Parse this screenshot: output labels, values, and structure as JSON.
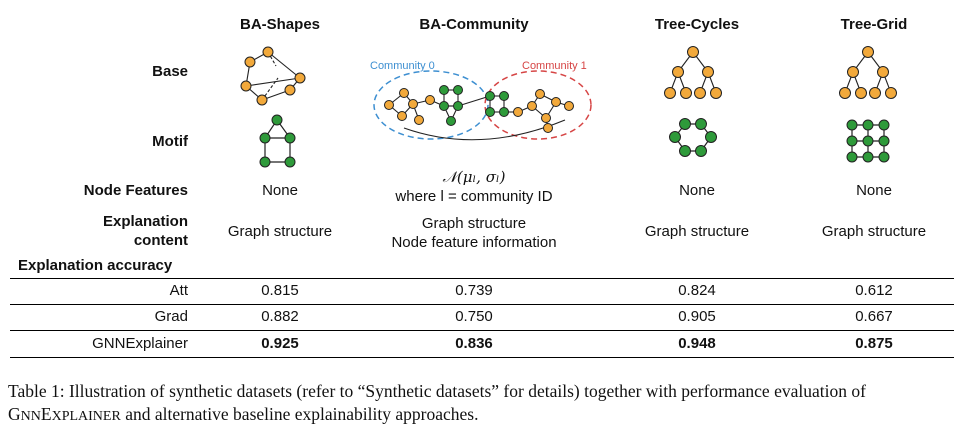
{
  "columns": [
    "BA-Shapes",
    "BA-Community",
    "Tree-Cycles",
    "Tree-Grid"
  ],
  "row_labels": {
    "base": "Base",
    "motif": "Motif",
    "node_features": "Node Features",
    "explanation_content_line1": "Explanation",
    "explanation_content_line2": "content",
    "explanation_accuracy": "Explanation accuracy"
  },
  "community_labels": [
    "Community 0",
    "Community 1"
  ],
  "node_features": {
    "ba_shapes": "None",
    "ba_community_formula": "𝒩(μₗ, σₗ)",
    "ba_community_note": "where l = community ID",
    "tree_cycles": "None",
    "tree_grid": "None"
  },
  "explanation_content": {
    "ba_shapes": "Graph structure",
    "ba_community_line1": "Graph structure",
    "ba_community_line2": "Node feature information",
    "tree_cycles": "Graph structure",
    "tree_grid": "Graph structure"
  },
  "methods": [
    {
      "name": "Att",
      "values": [
        "0.815",
        "0.739",
        "0.824",
        "0.612"
      ]
    },
    {
      "name": "Grad",
      "values": [
        "0.882",
        "0.750",
        "0.905",
        "0.667"
      ]
    },
    {
      "name": "GNNExplainer",
      "values": [
        "0.925",
        "0.836",
        "0.948",
        "0.875"
      ]
    }
  ],
  "caption": {
    "part1": "Table 1: Illustration of synthetic datasets (refer to “Synthetic datasets” for details) together with performance evaluation of ",
    "name_first": "G",
    "name_rest1": "NN",
    "name_mid": "E",
    "name_rest2": "XPLAINER",
    "part2": " and alternative baseline explainability approaches."
  },
  "colors": {
    "base_node": "#f2a93b",
    "motif_node": "#2e9a3a",
    "community0": "#3d8fd1",
    "community1": "#d64545"
  }
}
